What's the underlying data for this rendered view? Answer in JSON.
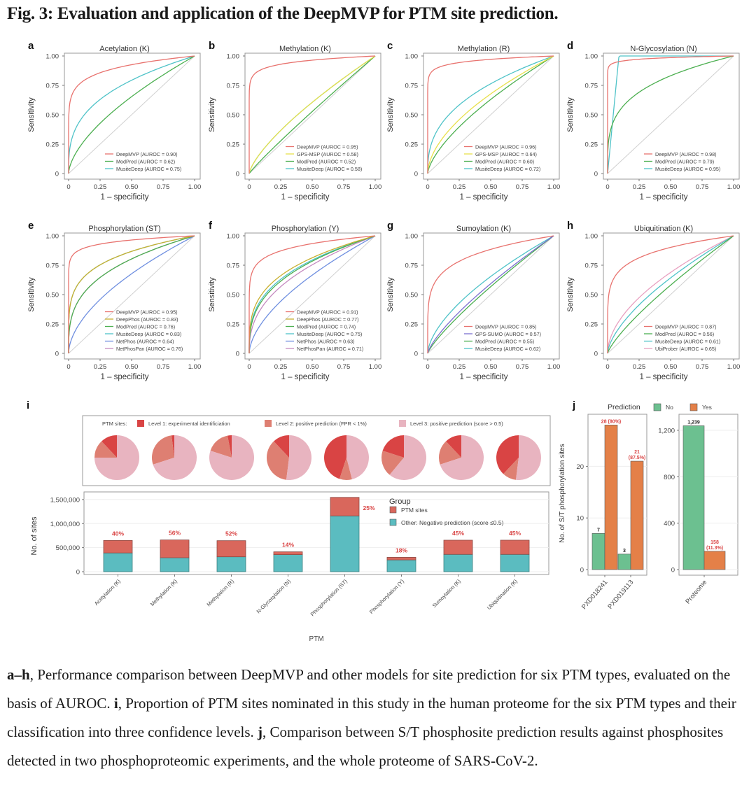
{
  "figure": {
    "title": "Fig. 3: Evaluation and application of the DeepMVP for PTM site prediction.",
    "caption": [
      {
        "bold": "a–h",
        "text": ", Performance comparison between DeepMVP and other models for site prediction for six PTM types, evaluated on the basis of AUROC. "
      },
      {
        "bold": "i",
        "text": ", Proportion of PTM sites nominated in this study in the human proteome for the six PTM types and their classification into three confidence levels. "
      },
      {
        "bold": "j",
        "text": ", Comparison between S/T phosphosite prediction results against phosphosites detected in two phosphoproteomic experiments, and the whole proteome of SARS-CoV-2."
      }
    ]
  },
  "colors": {
    "DeepMVP": "#e8726e",
    "ModPred": "#4caf50",
    "MusiteDeep": "#4fc3c8",
    "GPS-MSP": "#e8e04a",
    "GPS-SUMO": "#7b6fd0",
    "DeepPhos": "#c9b030",
    "NetPhos": "#6f8fe0",
    "NetPhosPan": "#c58bc0",
    "UbiProber": "#e8a0c0",
    "diagonal": "#d0d0d0",
    "level1": "#d94444",
    "level2": "#de7f72",
    "level3": "#e8b4c0",
    "ptm_sites": "#d9675c",
    "negative": "#5bbcc0",
    "pred_no": "#6cc090",
    "pred_yes": "#e48048",
    "label_red": "#d94444"
  },
  "chart_data": [
    {
      "panel": "a",
      "type": "line",
      "title": "Acetylation (K)",
      "xlabel": "1 – specificity",
      "ylabel": "Sensitivity",
      "xlim": [
        0,
        1
      ],
      "ylim": [
        0,
        1
      ],
      "xticks": [
        "0",
        "0.25",
        "0.50",
        "0.75",
        "1.00"
      ],
      "yticks": [
        "0",
        "0.25",
        "0.50",
        "0.75",
        "1.00"
      ],
      "legend_position": "bottom-right",
      "series": [
        {
          "name": "DeepMVP",
          "auroc": 0.9,
          "legend": "DeepMVP (AUROC = 0.90)"
        },
        {
          "name": "ModPred",
          "auroc": 0.62,
          "legend": "ModPred (AUROC = 0.62)"
        },
        {
          "name": "MusiteDeep",
          "auroc": 0.75,
          "legend": "MusiteDeep (AUROC = 0.75)"
        }
      ]
    },
    {
      "panel": "b",
      "type": "line",
      "title": "Methylation (K)",
      "xlabel": "1 – specificity",
      "ylabel": "Sensitivity",
      "xlim": [
        0,
        1
      ],
      "ylim": [
        0,
        1
      ],
      "xticks": [
        "0",
        "0.25",
        "0.50",
        "0.75",
        "1.00"
      ],
      "yticks": [
        "0",
        "0.25",
        "0.50",
        "0.75",
        "1.00"
      ],
      "legend_position": "bottom-right",
      "series": [
        {
          "name": "DeepMVP",
          "auroc": 0.95,
          "legend": "DeepMVP (AUROC = 0.95)"
        },
        {
          "name": "GPS-MSP",
          "auroc": 0.58,
          "legend": "GPS-MSP (AUROC = 0.58)"
        },
        {
          "name": "ModPred",
          "auroc": 0.52,
          "legend": "ModPred (AUROC = 0.52)"
        },
        {
          "name": "MusiteDeep",
          "auroc": 0.58,
          "legend": "MusiteDeep (AUROC = 0.58)"
        }
      ]
    },
    {
      "panel": "c",
      "type": "line",
      "title": "Methylation (R)",
      "xlabel": "1 – specificity",
      "ylabel": "Sensitivity",
      "xlim": [
        0,
        1
      ],
      "ylim": [
        0,
        1
      ],
      "xticks": [
        "0",
        "0.25",
        "0.50",
        "0.75",
        "1.00"
      ],
      "yticks": [
        "0",
        "0.25",
        "0.50",
        "0.75",
        "1.00"
      ],
      "legend_position": "bottom-right",
      "series": [
        {
          "name": "DeepMVP",
          "auroc": 0.96,
          "legend": "DeepMVP (AUROC = 0.96)"
        },
        {
          "name": "GPS-MSP",
          "auroc": 0.64,
          "legend": "GPS-MSP (AUROC = 0.64)"
        },
        {
          "name": "ModPred",
          "auroc": 0.6,
          "legend": "ModPred (AUROC = 0.60)"
        },
        {
          "name": "MusiteDeep",
          "auroc": 0.72,
          "legend": "MusiteDeep (AUROC = 0.72)"
        }
      ]
    },
    {
      "panel": "d",
      "type": "line",
      "title": "N-Glycosylation (N)",
      "xlabel": "1 – specificity",
      "ylabel": "Sensitivity",
      "xlim": [
        0,
        1
      ],
      "ylim": [
        0,
        1
      ],
      "xticks": [
        "0",
        "0.25",
        "0.50",
        "0.75",
        "1.00"
      ],
      "yticks": [
        "0",
        "0.25",
        "0.50",
        "0.75",
        "1.00"
      ],
      "legend_position": "bottom-right",
      "series": [
        {
          "name": "DeepMVP",
          "auroc": 0.98,
          "legend": "DeepMVP (AUROC = 0.98)"
        },
        {
          "name": "ModPred",
          "auroc": 0.79,
          "legend": "ModPred (AUROC = 0.79)"
        },
        {
          "name": "MusiteDeep",
          "auroc": 0.95,
          "legend": "MusiteDeep (AUROC = 0.95)"
        }
      ]
    },
    {
      "panel": "e",
      "type": "line",
      "title": "Phosphorylation (ST)",
      "xlabel": "1 – specificity",
      "ylabel": "Sensitivity",
      "xlim": [
        0,
        1
      ],
      "ylim": [
        0,
        1
      ],
      "xticks": [
        "0",
        "0.25",
        "0.50",
        "0.75",
        "1.00"
      ],
      "yticks": [
        "0",
        "0.25",
        "0.50",
        "0.75",
        "1.00"
      ],
      "legend_position": "bottom-right",
      "series": [
        {
          "name": "DeepMVP",
          "auroc": 0.95,
          "legend": "DeepMVP (AUROC = 0.95)"
        },
        {
          "name": "DeepPhos",
          "auroc": 0.83,
          "legend": "DeepPhos (AUROC = 0.83)"
        },
        {
          "name": "ModPred",
          "auroc": 0.76,
          "legend": "ModPred (AUROC = 0.76)"
        },
        {
          "name": "MusiteDeep",
          "auroc": 0.83,
          "legend": "MusiteDeep (AUROC = 0.83)"
        },
        {
          "name": "NetPhos",
          "auroc": 0.64,
          "legend": "NetPhos (AUROC = 0.64)"
        },
        {
          "name": "NetPhosPan",
          "auroc": 0.76,
          "legend": "NetPhosPan (AUROC = 0.76)"
        }
      ]
    },
    {
      "panel": "f",
      "type": "line",
      "title": "Phosphorylation (Y)",
      "xlabel": "1 – specificity",
      "ylabel": "Sensitivity",
      "xlim": [
        0,
        1
      ],
      "ylim": [
        0,
        1
      ],
      "xticks": [
        "0",
        "0.25",
        "0.50",
        "0.75",
        "1.00"
      ],
      "yticks": [
        "0",
        "0.25",
        "0.50",
        "0.75",
        "1.00"
      ],
      "legend_position": "bottom-right",
      "series": [
        {
          "name": "DeepMVP",
          "auroc": 0.91,
          "legend": "DeepMVP (AUROC = 0.91)"
        },
        {
          "name": "DeepPhos",
          "auroc": 0.77,
          "legend": "DeepPhos (AUROC = 0.77)"
        },
        {
          "name": "ModPred",
          "auroc": 0.74,
          "legend": "ModPred (AUROC = 0.74)"
        },
        {
          "name": "MusiteDeep",
          "auroc": 0.75,
          "legend": "MusiteDeep (AUROC = 0.75)"
        },
        {
          "name": "NetPhos",
          "auroc": 0.63,
          "legend": "NetPhos (AUROC = 0.63)"
        },
        {
          "name": "NetPhosPan",
          "auroc": 0.71,
          "legend": "NetPhosPan (AUROC = 0.71)"
        }
      ]
    },
    {
      "panel": "g",
      "type": "line",
      "title": "Sumoylation (K)",
      "xlabel": "1 – specificity",
      "ylabel": "Sensitivity",
      "xlim": [
        0,
        1
      ],
      "ylim": [
        0,
        1
      ],
      "xticks": [
        "0",
        "0.25",
        "0.50",
        "0.75",
        "1.00"
      ],
      "yticks": [
        "0",
        "0.25",
        "0.50",
        "0.75",
        "1.00"
      ],
      "legend_position": "bottom-right",
      "series": [
        {
          "name": "DeepMVP",
          "auroc": 0.85,
          "legend": "DeepMVP (AUROC = 0.85)"
        },
        {
          "name": "GPS-SUMO",
          "auroc": 0.57,
          "legend": "GPS-SUMO (AUROC = 0.57)"
        },
        {
          "name": "ModPred",
          "auroc": 0.55,
          "legend": "ModPred (AUROC = 0.55)"
        },
        {
          "name": "MusiteDeep",
          "auroc": 0.62,
          "legend": "MusiteDeep (AUROC = 0.62)"
        }
      ]
    },
    {
      "panel": "h",
      "type": "line",
      "title": "Ubiquitination (K)",
      "xlabel": "1 – specificity",
      "ylabel": "Sensitivity",
      "xlim": [
        0,
        1
      ],
      "ylim": [
        0,
        1
      ],
      "xticks": [
        "0",
        "0.25",
        "0.50",
        "0.75",
        "1.00"
      ],
      "yticks": [
        "0",
        "0.25",
        "0.50",
        "0.75",
        "1.00"
      ],
      "legend_position": "bottom-right",
      "series": [
        {
          "name": "DeepMVP",
          "auroc": 0.87,
          "legend": "DeepMVP (AUROC = 0.87)"
        },
        {
          "name": "ModPred",
          "auroc": 0.56,
          "legend": "ModPred (AUROC = 0.56)"
        },
        {
          "name": "MusiteDeep",
          "auroc": 0.61,
          "legend": "MusiteDeep (AUROC = 0.61)"
        },
        {
          "name": "UbiProber",
          "auroc": 0.65,
          "legend": "UbiProber (AUROC = 0.65)"
        }
      ]
    },
    {
      "panel": "i-pies",
      "type": "pie",
      "legend_title": "PTM sites:",
      "legend": [
        "Level 1: experimental identificiation",
        "Level 2: positive prediction (FPR < 1%)",
        "Level 3: positive prediction (score > 0.5)"
      ],
      "categories": [
        "Acetylation (K)",
        "Methylation (K)",
        "Methylation (R)",
        "N-Glycosylation (N)",
        "Phosphorylation (ST)",
        "Phosphorylation (Y)",
        "Sumoylation (K)",
        "Ubiquitination (K)"
      ],
      "series": [
        {
          "name": "Level 1",
          "values": [
            0.12,
            0.02,
            0.03,
            0.12,
            0.45,
            0.2,
            0.12,
            0.38
          ]
        },
        {
          "name": "Level 2",
          "values": [
            0.13,
            0.28,
            0.17,
            0.36,
            0.09,
            0.19,
            0.18,
            0.1
          ]
        },
        {
          "name": "Level 3",
          "values": [
            0.75,
            0.7,
            0.8,
            0.52,
            0.46,
            0.61,
            0.7,
            0.52
          ]
        }
      ]
    },
    {
      "panel": "i-bars",
      "type": "bar",
      "stacked": true,
      "xlabel": "PTM",
      "ylabel": "No. of sites",
      "ylim": [
        0,
        1600000
      ],
      "yticks": [
        "0",
        "500,000",
        "1,000,000",
        "1,500,000"
      ],
      "yticks_values": [
        0,
        500000,
        1000000,
        1500000
      ],
      "legend_title": "Group",
      "legend_position": "top-right",
      "categories": [
        "Acetylation (K)",
        "Methylation (K)",
        "Methylation (R)",
        "N-Glycosylation (N)",
        "Phosphorylation (ST)",
        "Phosphorylation (Y)",
        "Sumoylation (K)",
        "Ubiquitination (K)"
      ],
      "series": [
        {
          "name": "Other: Negative prediction (score ≤0.5)",
          "key": "negative",
          "values": [
            390000,
            290000,
            310000,
            355000,
            1160000,
            245000,
            360000,
            360000
          ]
        },
        {
          "name": "PTM sites",
          "key": "ptm_sites",
          "values": [
            260000,
            370000,
            335000,
            58000,
            385000,
            54000,
            295000,
            295000
          ]
        }
      ],
      "data_labels": [
        "40%",
        "56%",
        "52%",
        "14%",
        "25%",
        "18%",
        "45%",
        "45%"
      ]
    },
    {
      "panel": "j-left",
      "type": "bar",
      "ylabel": "No. of S/T phosphorylation sites",
      "legend_title": "Prediction",
      "legend": [
        "No",
        "Yes"
      ],
      "legend_position": "top",
      "ylim": [
        0,
        29
      ],
      "yticks": [
        "0",
        "10",
        "20"
      ],
      "yticks_values": [
        0,
        10,
        20
      ],
      "categories": [
        "PXD018241",
        "PXD019113"
      ],
      "series": [
        {
          "name": "No",
          "values": [
            7,
            3
          ],
          "labels": [
            "7",
            "3"
          ]
        },
        {
          "name": "Yes",
          "values": [
            28,
            21
          ],
          "labels": [
            "28 (80%)",
            "21\n(87.5%)"
          ]
        }
      ]
    },
    {
      "panel": "j-right",
      "type": "bar",
      "ylim": [
        0,
        1290
      ],
      "yticks": [
        "0",
        "400",
        "800",
        "1,200"
      ],
      "yticks_values": [
        0,
        400,
        800,
        1200
      ],
      "categories": [
        "Proteome"
      ],
      "series": [
        {
          "name": "No",
          "values": [
            1239
          ],
          "labels": [
            "1,239"
          ]
        },
        {
          "name": "Yes",
          "values": [
            158
          ],
          "labels": [
            "158\n(11.3%)"
          ]
        }
      ]
    }
  ],
  "panel_letters": [
    "a",
    "b",
    "c",
    "d",
    "e",
    "f",
    "g",
    "h",
    "i",
    "j"
  ]
}
